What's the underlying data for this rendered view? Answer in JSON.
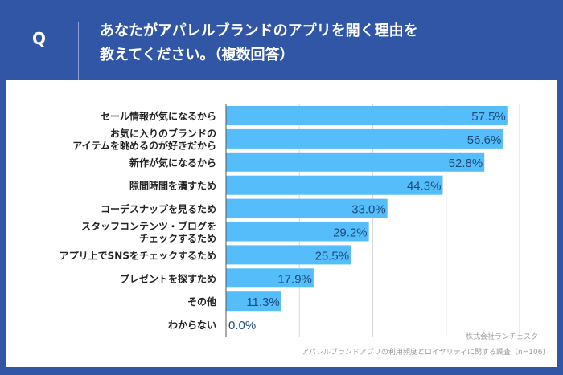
{
  "header": {
    "q_label": "Q",
    "title_line1": "あなたがアパレルブランドのアプリを開く理由を",
    "title_line2": "教えてください。（複数回答）"
  },
  "footer": {
    "company": "株式会社ランチェスター",
    "survey": "アパレルブランドアプリの利用頻度とロイヤリティに関する調査（n=106)"
  },
  "colors": {
    "background": "#3256a6",
    "bar": "#56bdfb",
    "label": "#1d4b7a"
  },
  "chart_data": {
    "type": "bar",
    "orientation": "horizontal",
    "categories": [
      [
        "セール情報が気になるから"
      ],
      [
        "お気に入りのブランドの",
        "アイテムを眺めるのが好きだから"
      ],
      [
        "新作が気になるから"
      ],
      [
        "隙間時間を潰すため"
      ],
      [
        "コーデスナップを見るため"
      ],
      [
        "スタッフコンテンツ・ブログを",
        "チェックするため"
      ],
      [
        "アプリ上でSNSをチェックするため"
      ],
      [
        "プレゼントを探すため"
      ],
      [
        "その他"
      ],
      [
        "わからない"
      ]
    ],
    "values": [
      57.5,
      56.6,
      52.8,
      44.3,
      33.0,
      29.2,
      25.5,
      17.9,
      11.3,
      0.0
    ],
    "data_labels": [
      "57.5%",
      "56.6%",
      "52.8%",
      "44.3%",
      "33.0%",
      "29.2%",
      "25.5%",
      "17.9%",
      "11.3%",
      "0.0%"
    ],
    "xlim": [
      0,
      60
    ],
    "gridlines": [
      15,
      30,
      45,
      60
    ],
    "grid": true
  }
}
